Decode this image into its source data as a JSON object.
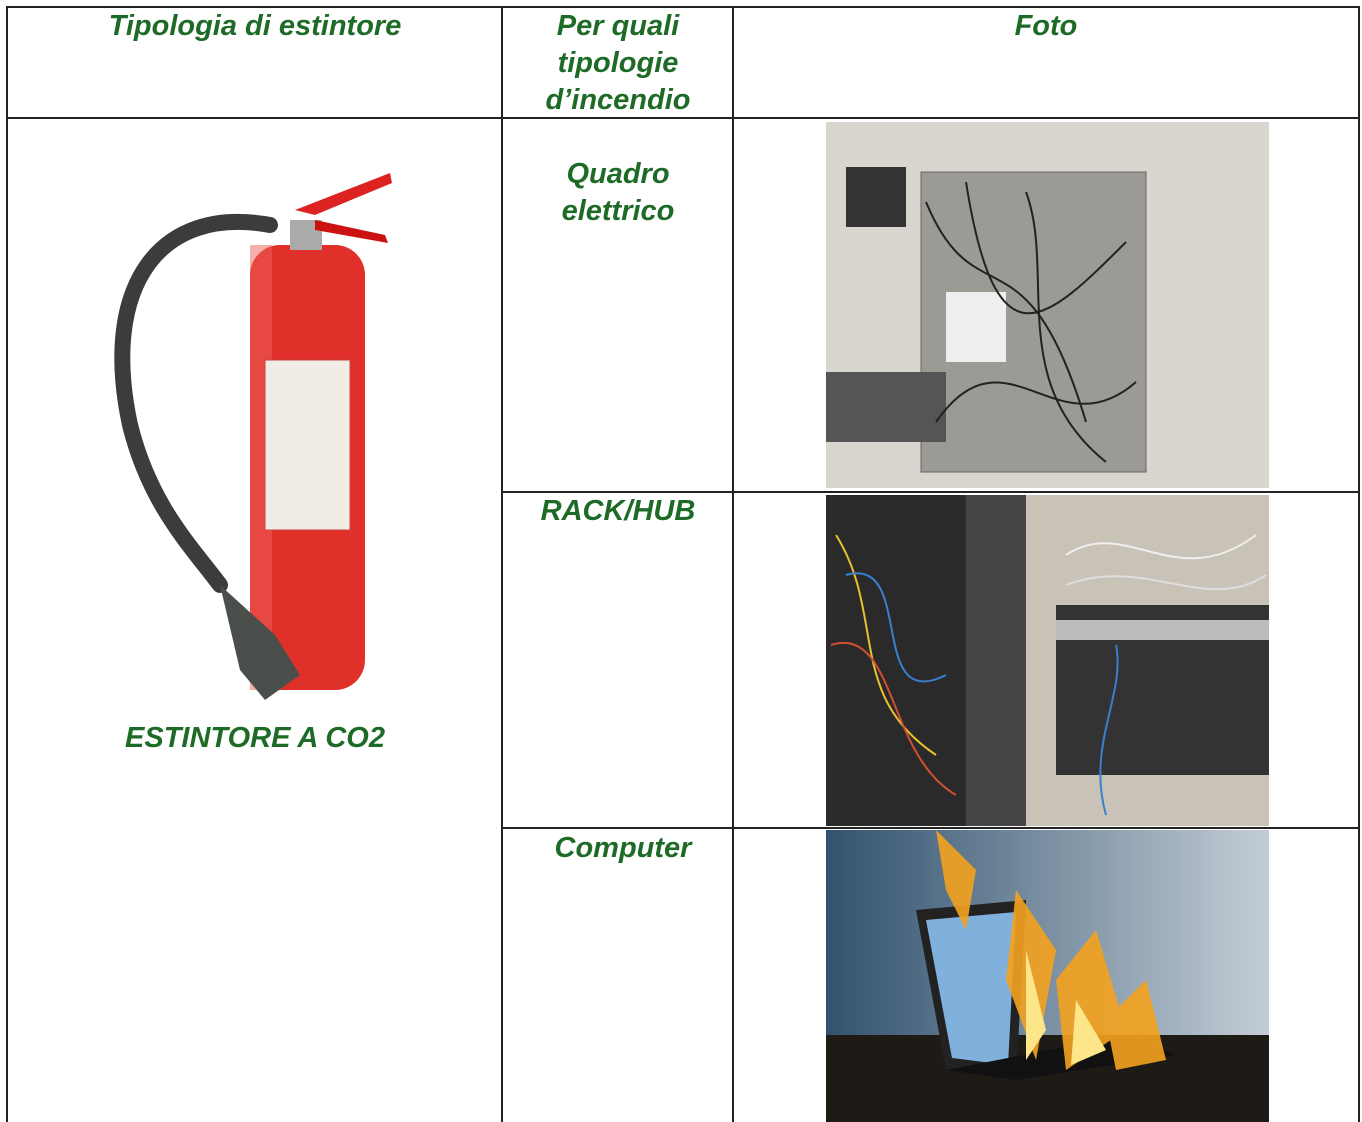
{
  "table": {
    "headers": [
      "Tipologia di estintore",
      "Per quali tipologie d’incendio",
      "Foto"
    ],
    "extinguisher": {
      "label": "ESTINTORE A CO2"
    },
    "rows": [
      {
        "fire_type": "Quadro elettrico"
      },
      {
        "fire_type": "RACK/HUB"
      },
      {
        "fire_type": "Computer"
      }
    ]
  }
}
